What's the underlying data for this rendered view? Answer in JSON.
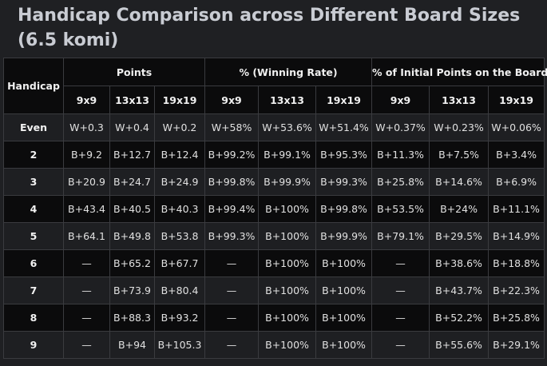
{
  "title": "Handicap Comparison across Different Board Sizes (6.5 komi)",
  "headers": {
    "handicap": "Handicap",
    "groups": [
      "Points",
      "% (Winning Rate)",
      "% of Initial Points on the Board"
    ],
    "sizes": [
      "9x9",
      "13x13",
      "19x19",
      "9x9",
      "13x13",
      "19x19",
      "9x9",
      "13x13",
      "19x19"
    ]
  },
  "rows": [
    {
      "label": "Even",
      "cells": [
        "W+0.3",
        "W+0.4",
        "W+0.2",
        "W+58%",
        "W+53.6%",
        "W+51.4%",
        "W+0.37%",
        "W+0.23%",
        "W+0.06%"
      ]
    },
    {
      "label": "2",
      "cells": [
        "B+9.2",
        "B+12.7",
        "B+12.4",
        "B+99.2%",
        "B+99.1%",
        "B+95.3%",
        "B+11.3%",
        "B+7.5%",
        "B+3.4%"
      ]
    },
    {
      "label": "3",
      "cells": [
        "B+20.9",
        "B+24.7",
        "B+24.9",
        "B+99.8%",
        "B+99.9%",
        "B+99.3%",
        "B+25.8%",
        "B+14.6%",
        "B+6.9%"
      ]
    },
    {
      "label": "4",
      "cells": [
        "B+43.4",
        "B+40.5",
        "B+40.3",
        "B+99.4%",
        "B+100%",
        "B+99.8%",
        "B+53.5%",
        "B+24%",
        "B+11.1%"
      ]
    },
    {
      "label": "5",
      "cells": [
        "B+64.1",
        "B+49.8",
        "B+53.8",
        "B+99.3%",
        "B+100%",
        "B+99.9%",
        "B+79.1%",
        "B+29.5%",
        "B+14.9%"
      ]
    },
    {
      "label": "6",
      "cells": [
        "—",
        "B+65.2",
        "B+67.7",
        "—",
        "B+100%",
        "B+100%",
        "—",
        "B+38.6%",
        "B+18.8%"
      ]
    },
    {
      "label": "7",
      "cells": [
        "—",
        "B+73.9",
        "B+80.4",
        "—",
        "B+100%",
        "B+100%",
        "—",
        "B+43.7%",
        "B+22.3%"
      ]
    },
    {
      "label": "8",
      "cells": [
        "—",
        "B+88.3",
        "B+93.2",
        "—",
        "B+100%",
        "B+100%",
        "—",
        "B+52.2%",
        "B+25.8%"
      ]
    },
    {
      "label": "9",
      "cells": [
        "—",
        "B+94",
        "B+105.3",
        "—",
        "B+100%",
        "B+100%",
        "—",
        "B+55.6%",
        "B+29.1%"
      ]
    }
  ]
}
